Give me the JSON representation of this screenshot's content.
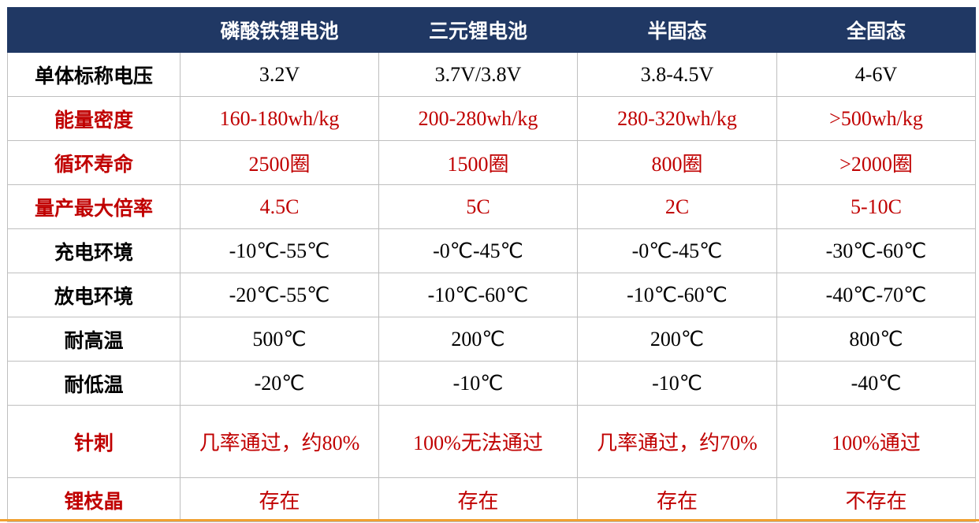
{
  "header": {
    "columns": [
      "磷酸铁锂电池",
      "三元锂电池",
      "半固态",
      "全固态"
    ],
    "color": "#203864"
  },
  "rows": [
    {
      "label": "单体标称电压",
      "values": [
        "3.2V",
        "3.7V/3.8V",
        "3.8-4.5V",
        "4-6V"
      ],
      "color": "#000000"
    },
    {
      "label": "能量密度",
      "values": [
        "160-180wh/kg",
        "200-280wh/kg",
        "280-320wh/kg",
        ">500wh/kg"
      ],
      "color": "#c00000"
    },
    {
      "label": "循环寿命",
      "values": [
        "2500圈",
        "1500圈",
        "800圈",
        ">2000圈"
      ],
      "color": "#c00000"
    },
    {
      "label": "量产最大倍率",
      "values": [
        "4.5C",
        "5C",
        "2C",
        "5-10C"
      ],
      "color": "#c00000"
    },
    {
      "label": "充电环境",
      "values": [
        "-10℃-55℃",
        "-0℃-45℃",
        "-0℃-45℃",
        "-30℃-60℃"
      ],
      "color": "#000000"
    },
    {
      "label": "放电环境",
      "values": [
        "-20℃-55℃",
        "-10℃-60℃",
        "-10℃-60℃",
        "-40℃-70℃"
      ],
      "color": "#000000"
    },
    {
      "label": "耐高温",
      "values": [
        "500℃",
        "200℃",
        "200℃",
        "800℃"
      ],
      "color": "#000000"
    },
    {
      "label": "耐低温",
      "values": [
        "-20℃",
        "-10℃",
        "-10℃",
        "-40℃"
      ],
      "color": "#000000"
    },
    {
      "label": "针刺",
      "values": [
        "几率通过，约80%",
        "100%无法通过",
        "几率通过，约70%",
        "100%通过"
      ],
      "color": "#c00000"
    },
    {
      "label": "锂枝晶",
      "values": [
        "存在",
        "存在",
        "存在",
        "不存在"
      ],
      "color": "#c00000"
    }
  ]
}
